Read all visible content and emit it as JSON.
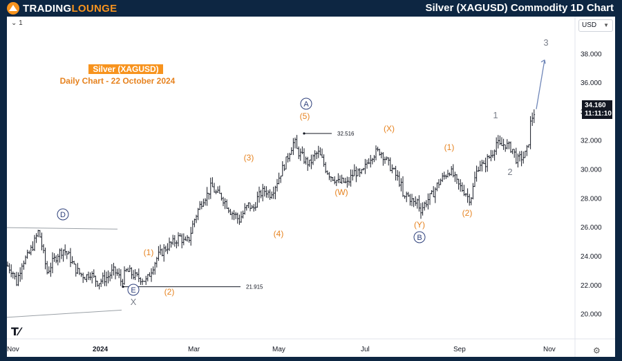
{
  "header": {
    "logo_left": "TRADING",
    "logo_right": "LOUNGE",
    "title": "Silver (XAGUSD) Commodity 1D Chart"
  },
  "toolbar": {
    "interval_label": "1"
  },
  "currency_selector": {
    "label": "USD",
    "icon": "chevron-down-icon"
  },
  "price_tag": {
    "price": "34.160",
    "countdown": "11:11:10"
  },
  "colors": {
    "brand_orange": "#f7931e",
    "background": "#0d2642",
    "wave_orange": "#e6821e",
    "wave_blue": "#2c3e7a"
  },
  "chart_data": {
    "type": "ohlc",
    "title": "Silver (XAGUSD)",
    "subtitle": "Daily Chart - 22 October 2024",
    "ylim": [
      18.5,
      40.5
    ],
    "y_ticks": [
      "38.000",
      "36.000",
      "34.000",
      "32.000",
      "30.000",
      "28.000",
      "26.000",
      "24.000",
      "22.000",
      "20.000"
    ],
    "x_ticks": [
      "Nov",
      "2024",
      "Mar",
      "May",
      "Jul",
      "Sep",
      "Nov"
    ],
    "price_path": [
      [
        0,
        23.4
      ],
      [
        8,
        23.0
      ],
      [
        14,
        22.2
      ],
      [
        22,
        23.6
      ],
      [
        30,
        24.0
      ],
      [
        38,
        24.8
      ],
      [
        46,
        25.8
      ],
      [
        52,
        24.4
      ],
      [
        58,
        22.9
      ],
      [
        66,
        23.6
      ],
      [
        74,
        24.2
      ],
      [
        82,
        24.5
      ],
      [
        90,
        24.0
      ],
      [
        98,
        23.2
      ],
      [
        106,
        22.8
      ],
      [
        114,
        22.6
      ],
      [
        120,
        22.9
      ],
      [
        126,
        22.5
      ],
      [
        132,
        22.2
      ],
      [
        138,
        22.4
      ],
      [
        146,
        22.6
      ],
      [
        154,
        23.0
      ],
      [
        160,
        22.8
      ],
      [
        166,
        22.2
      ],
      [
        172,
        23.0
      ],
      [
        178,
        22.9
      ],
      [
        186,
        22.6
      ],
      [
        194,
        22.5
      ],
      [
        202,
        22.3
      ],
      [
        210,
        23.2
      ],
      [
        218,
        24.0
      ],
      [
        226,
        24.4
      ],
      [
        234,
        24.8
      ],
      [
        242,
        25.0
      ],
      [
        250,
        25.4
      ],
      [
        258,
        24.9
      ],
      [
        264,
        25.3
      ],
      [
        270,
        26.4
      ],
      [
        278,
        27.4
      ],
      [
        284,
        28.0
      ],
      [
        290,
        28.3
      ],
      [
        296,
        28.9
      ],
      [
        302,
        28.4
      ],
      [
        310,
        28.2
      ],
      [
        318,
        27.6
      ],
      [
        324,
        27.1
      ],
      [
        330,
        26.9
      ],
      [
        336,
        26.5
      ],
      [
        344,
        27.2
      ],
      [
        350,
        27.6
      ],
      [
        356,
        27.2
      ],
      [
        362,
        28.0
      ],
      [
        368,
        28.4
      ],
      [
        374,
        28.6
      ],
      [
        380,
        28.3
      ],
      [
        386,
        28.7
      ],
      [
        392,
        29.3
      ],
      [
        398,
        30.0
      ],
      [
        404,
        30.6
      ],
      [
        410,
        31.4
      ],
      [
        416,
        32.0
      ],
      [
        420,
        31.3
      ],
      [
        426,
        31.0
      ],
      [
        432,
        30.6
      ],
      [
        438,
        30.4
      ],
      [
        444,
        30.9
      ],
      [
        450,
        31.2
      ],
      [
        456,
        30.7
      ],
      [
        462,
        30.0
      ],
      [
        468,
        29.6
      ],
      [
        474,
        29.4
      ],
      [
        480,
        29.1
      ],
      [
        486,
        29.2
      ],
      [
        492,
        29.0
      ],
      [
        498,
        29.5
      ],
      [
        504,
        29.9
      ],
      [
        510,
        29.6
      ],
      [
        516,
        29.9
      ],
      [
        522,
        30.6
      ],
      [
        528,
        31.0
      ],
      [
        534,
        31.2
      ],
      [
        540,
        31.3
      ],
      [
        546,
        30.9
      ],
      [
        552,
        30.4
      ],
      [
        558,
        30.0
      ],
      [
        564,
        29.5
      ],
      [
        570,
        29.0
      ],
      [
        574,
        27.8
      ],
      [
        578,
        28.3
      ],
      [
        584,
        28.0
      ],
      [
        590,
        27.6
      ],
      [
        594,
        27.9
      ],
      [
        598,
        27.2
      ],
      [
        604,
        27.6
      ],
      [
        610,
        28.0
      ],
      [
        616,
        28.3
      ],
      [
        622,
        28.9
      ],
      [
        628,
        29.3
      ],
      [
        634,
        29.6
      ],
      [
        640,
        30.0
      ],
      [
        646,
        29.6
      ],
      [
        652,
        29.0
      ],
      [
        658,
        28.7
      ],
      [
        664,
        28.4
      ],
      [
        668,
        28.0
      ],
      [
        672,
        28.2
      ],
      [
        678,
        29.6
      ],
      [
        684,
        30.5
      ],
      [
        690,
        30.2
      ],
      [
        696,
        30.8
      ],
      [
        702,
        31.1
      ],
      [
        708,
        31.9
      ],
      [
        714,
        31.6
      ],
      [
        720,
        31.8
      ],
      [
        726,
        31.6
      ],
      [
        732,
        31.4
      ],
      [
        738,
        30.6
      ],
      [
        742,
        30.8
      ],
      [
        748,
        30.9
      ],
      [
        754,
        31.5
      ],
      [
        758,
        33.4
      ],
      [
        764,
        34.1
      ]
    ],
    "annotations": [
      {
        "label": "Silver (XAGUSD)",
        "type": "title"
      },
      {
        "label": "Daily Chart - 22 October 2024",
        "type": "subtitle"
      },
      {
        "label": "D",
        "style": "circled-blue",
        "date": "Dec 2023",
        "price": 25.9
      },
      {
        "label": "E",
        "style": "circled-blue",
        "date": "Jan 2024",
        "price": 21.9
      },
      {
        "label": "X",
        "style": "grey",
        "date": "Jan 2024",
        "price": 21.9
      },
      {
        "label": "(1)",
        "style": "orange",
        "date": "Jan 2024"
      },
      {
        "label": "(2)",
        "style": "orange",
        "date": "Feb 2024"
      },
      {
        "label": "(3)",
        "style": "orange",
        "date": "Apr 2024"
      },
      {
        "label": "(4)",
        "style": "orange",
        "date": "Apr 2024"
      },
      {
        "label": "(5)",
        "style": "orange",
        "date": "May 2024",
        "price": 32.516
      },
      {
        "label": "A",
        "style": "circled-blue",
        "date": "May 2024",
        "price": 32.516
      },
      {
        "label": "(W)",
        "style": "orange",
        "date": "Jun 2024"
      },
      {
        "label": "(X)",
        "style": "orange",
        "date": "Jul 2024"
      },
      {
        "label": "(Y)",
        "style": "orange",
        "date": "Aug 2024",
        "price": 26.5
      },
      {
        "label": "B",
        "style": "circled-blue",
        "date": "Aug 2024",
        "price": 26.5
      },
      {
        "label": "(1)",
        "style": "orange",
        "date": "Aug 2024"
      },
      {
        "label": "(2)",
        "style": "orange",
        "date": "Sep 2024"
      },
      {
        "label": "1",
        "style": "grey",
        "date": "Sep 2024"
      },
      {
        "label": "2",
        "style": "grey",
        "date": "Oct 2024"
      },
      {
        "label": "3",
        "style": "grey",
        "date": "Nov 2024",
        "price": 38.0
      }
    ],
    "price_lines": [
      {
        "label": "32.516",
        "price": 32.516
      },
      {
        "label": "21.915",
        "price": 21.915
      }
    ]
  }
}
